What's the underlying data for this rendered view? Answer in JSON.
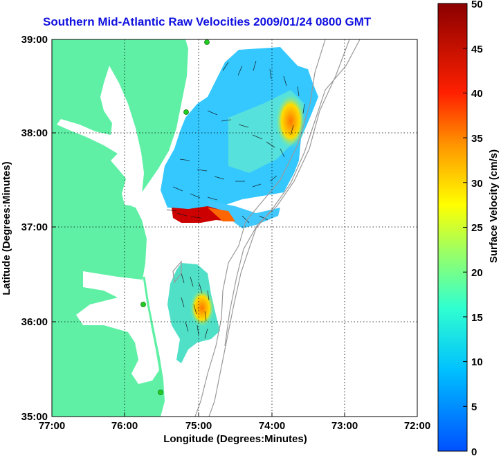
{
  "title": "Southern Mid-Atlantic Raw Velocities 2009/01/24 0800 GMT",
  "x_axis": {
    "label": "Longitude (Degrees:Minutes)",
    "ticks": [
      "77:00",
      "76:00",
      "75:00",
      "74:00",
      "73:00",
      "72:00"
    ],
    "range": [
      -77,
      -72
    ]
  },
  "y_axis": {
    "label": "Latitude (Degrees:Minutes)",
    "ticks": [
      "39:00",
      "38:00",
      "37:00",
      "36:00",
      "35:00"
    ],
    "range": [
      35,
      39
    ]
  },
  "colorbar": {
    "label": "Surface Velocity (cm/s)",
    "ticks": [
      "50",
      "45",
      "40",
      "35",
      "30",
      "25",
      "20",
      "15",
      "10",
      "5",
      "0"
    ],
    "range": [
      0,
      50
    ],
    "colormap": "jet"
  },
  "colors": {
    "land": "#5ff0a5",
    "title": "#1010e0",
    "contour": "#999999",
    "station": "#22cc22"
  },
  "grid": true
}
